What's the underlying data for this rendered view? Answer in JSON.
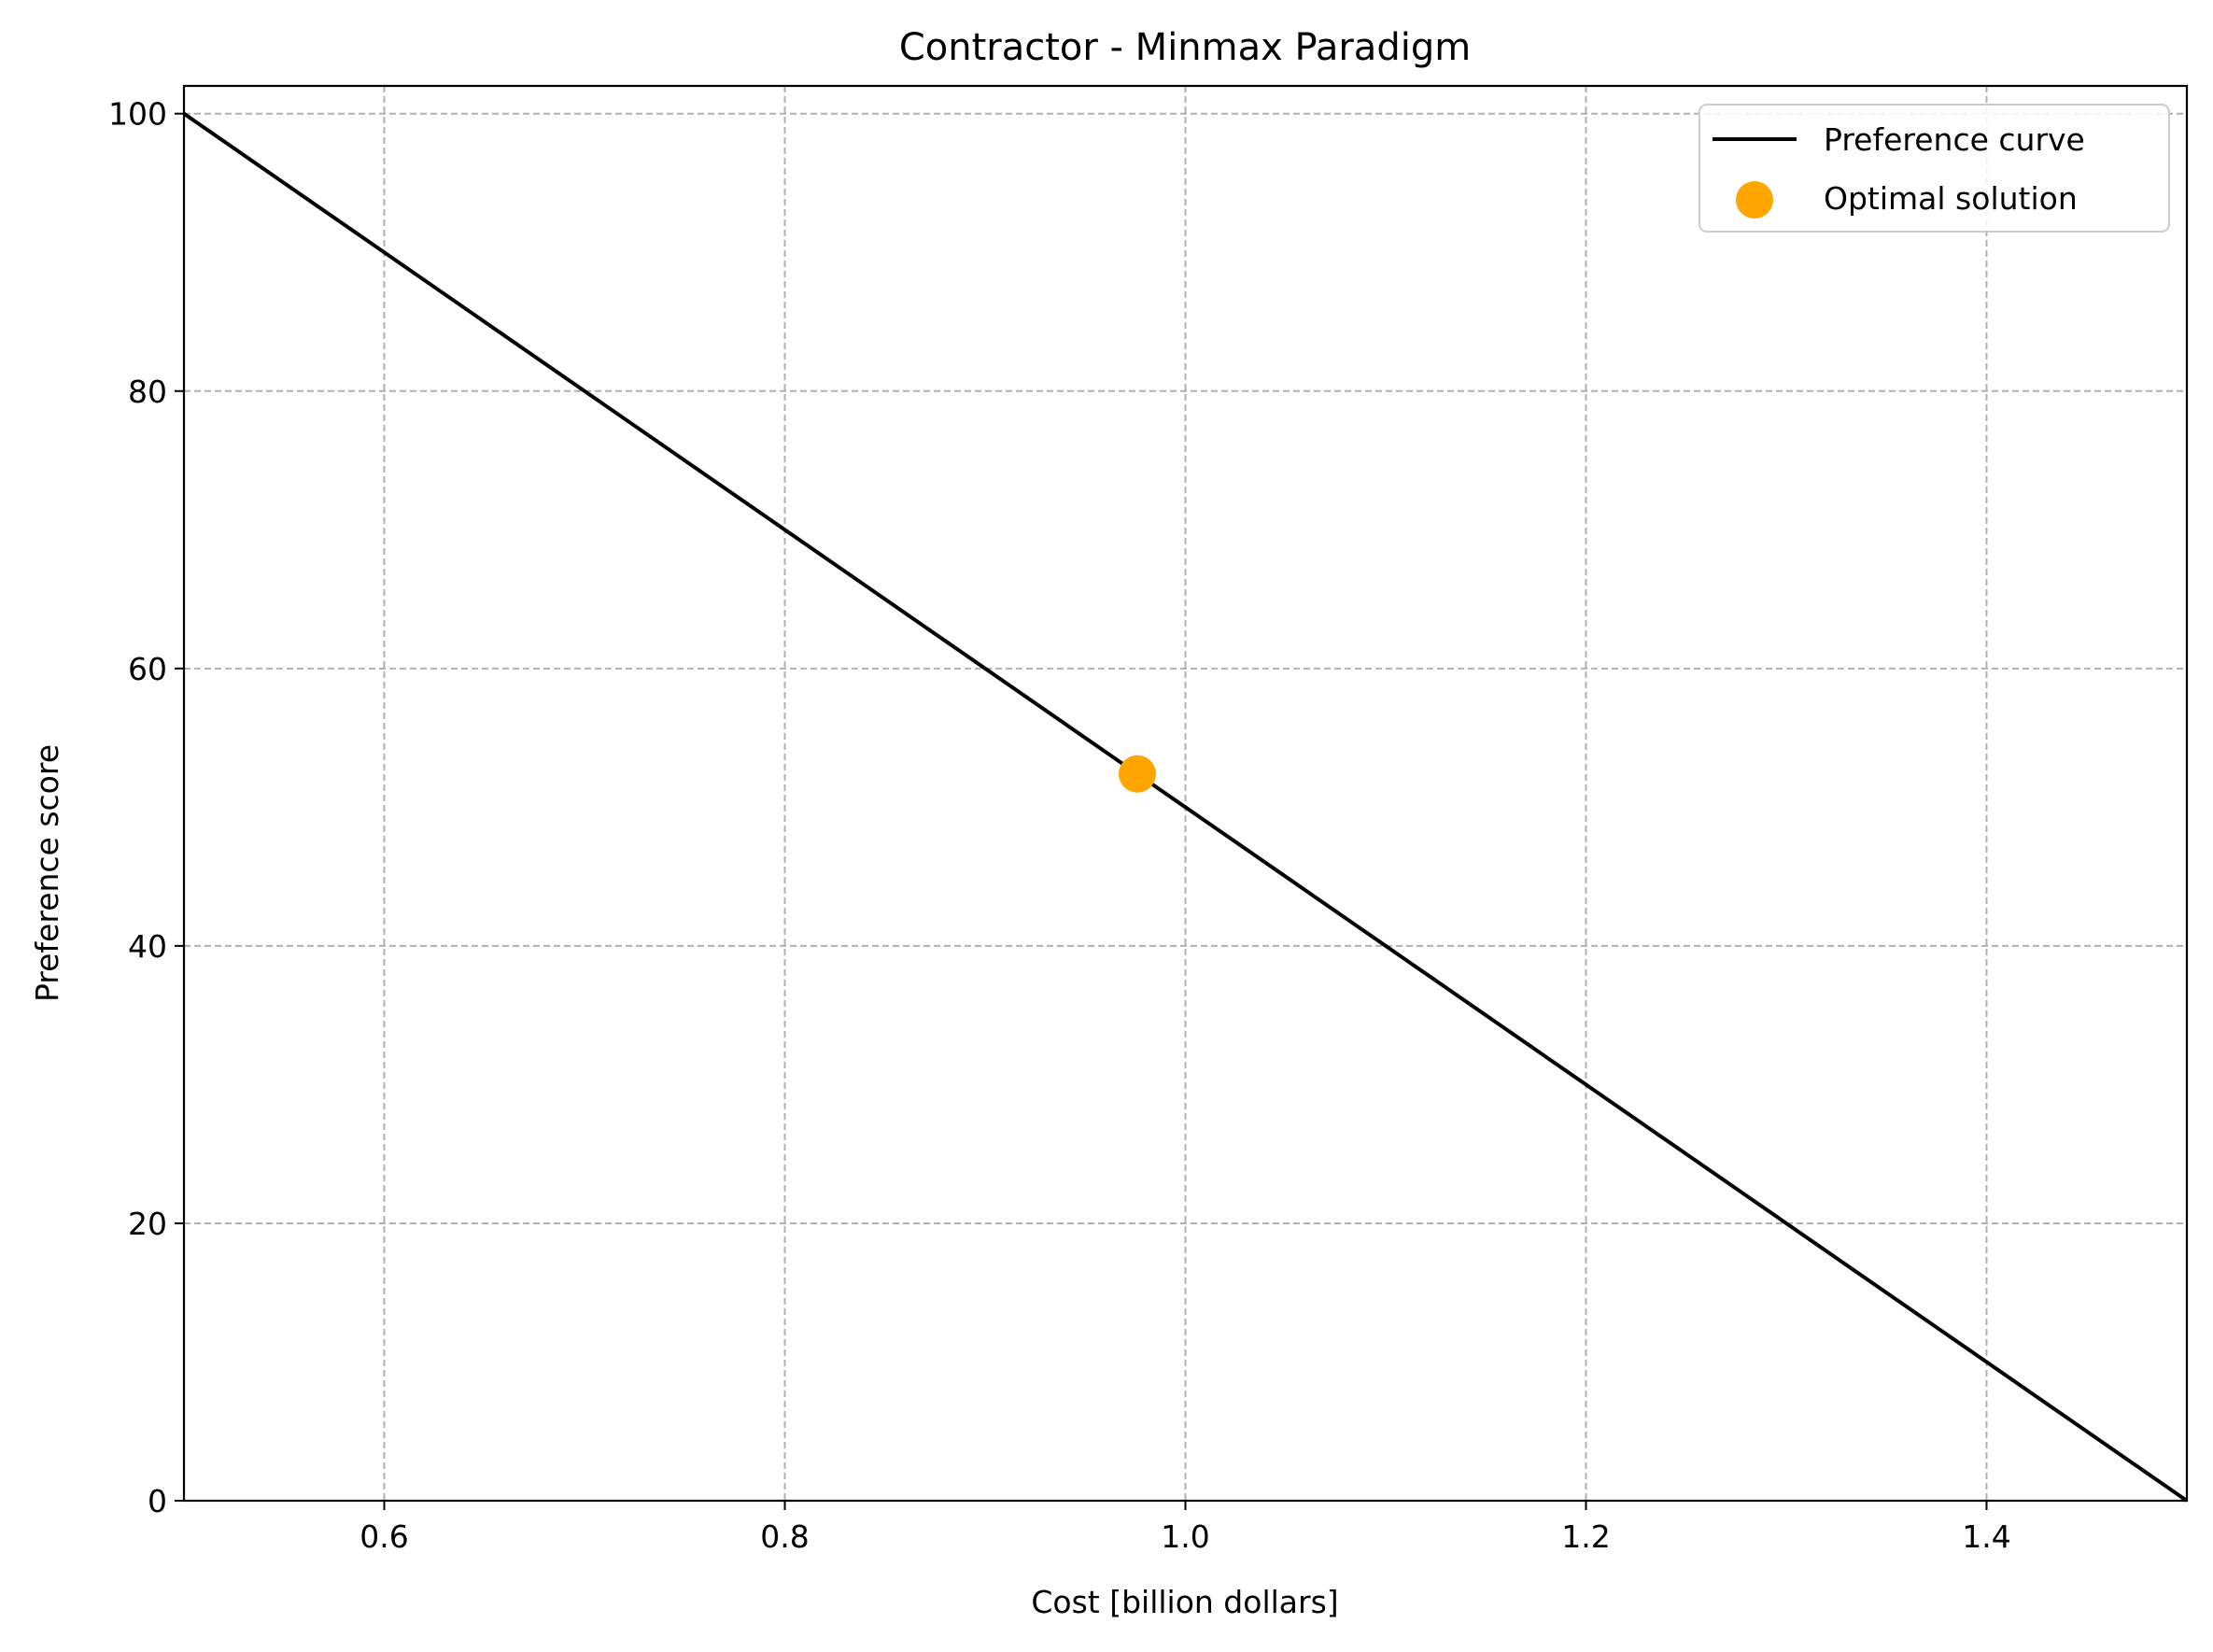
{
  "chart_data": {
    "type": "line",
    "title": "Contractor - Minmax Paradigm",
    "xlabel": "Cost [billion dollars]",
    "ylabel": "Preference score",
    "xlim": [
      0.5,
      1.5
    ],
    "ylim": [
      0,
      102
    ],
    "x_ticks": [
      0.6,
      0.8,
      1.0,
      1.2,
      1.4
    ],
    "x_tick_labels": [
      "0.6",
      "0.8",
      "1.0",
      "1.2",
      "1.4"
    ],
    "y_ticks": [
      0,
      20,
      40,
      60,
      80,
      100
    ],
    "y_tick_labels": [
      "0",
      "20",
      "40",
      "60",
      "80",
      "100"
    ],
    "grid": true,
    "legend_position": "top-right",
    "series": [
      {
        "name": "Preference curve",
        "kind": "line",
        "color": "#000000",
        "x": [
          0.5,
          1.5
        ],
        "y": [
          100,
          0
        ]
      },
      {
        "name": "Optimal solution",
        "kind": "scatter",
        "color": "#FFA500",
        "x": [
          0.976
        ],
        "y": [
          52.4
        ]
      }
    ]
  }
}
